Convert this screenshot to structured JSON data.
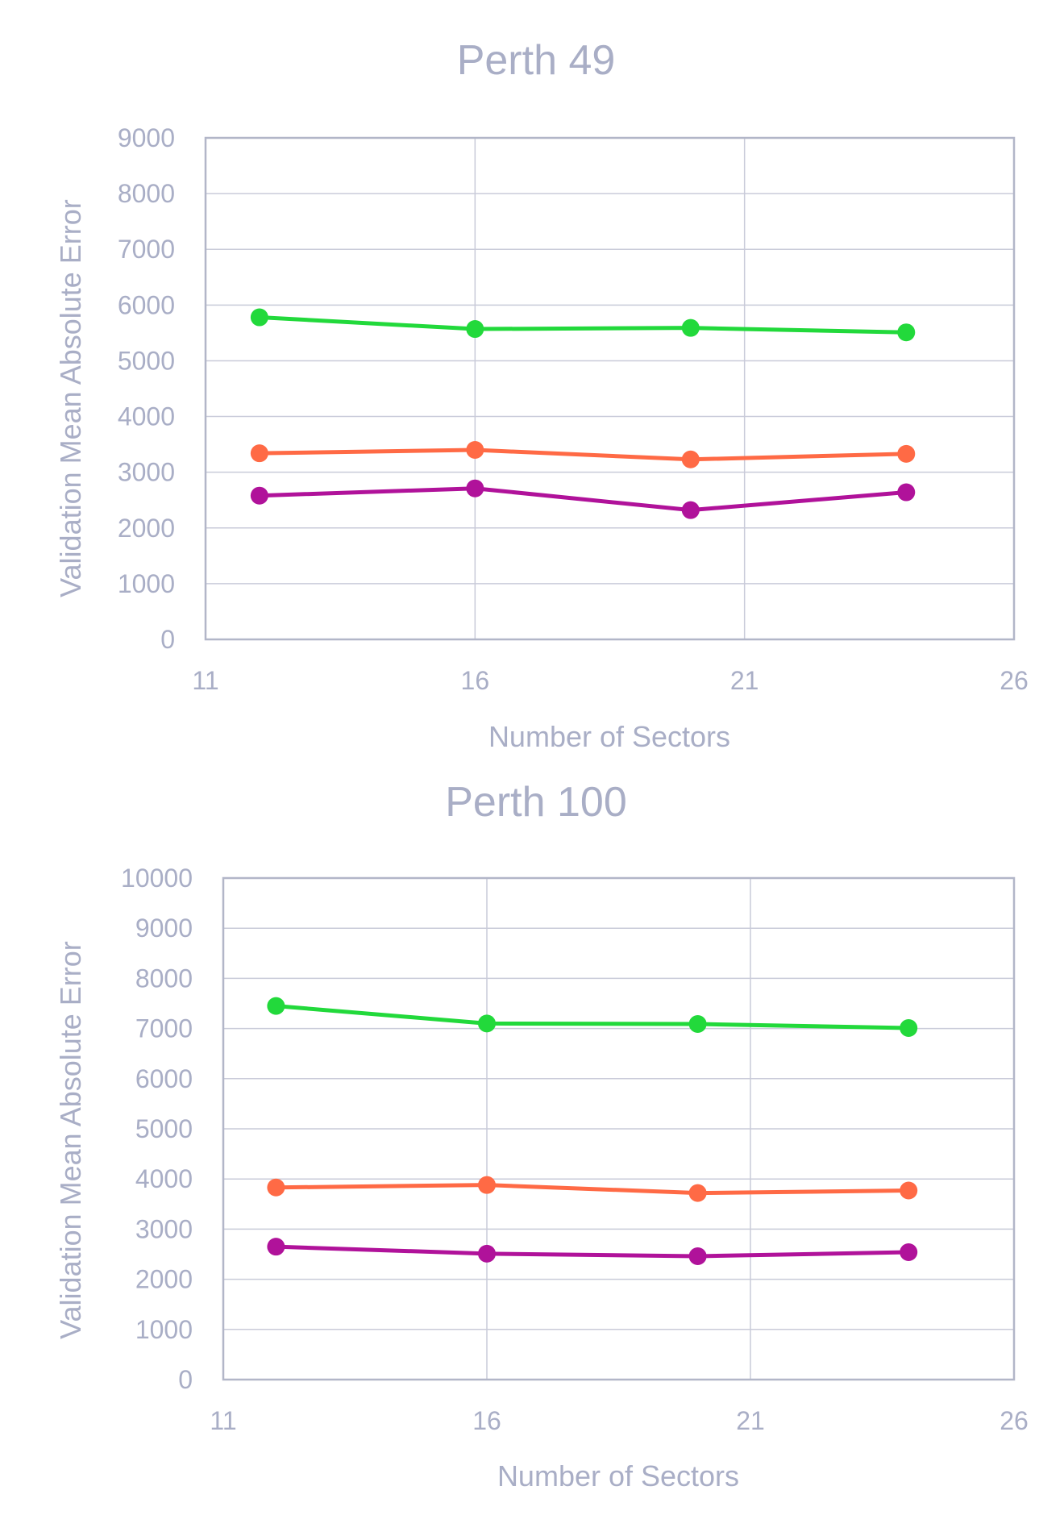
{
  "colors": {
    "text": "#a9aec6",
    "grid": "#c9cbd9",
    "series": [
      "#22d93b",
      "#ff6a45",
      "#b0129a"
    ]
  },
  "chart_data": [
    {
      "type": "line",
      "title": "Perth 49",
      "xlabel": "Number of Sectors",
      "ylabel": "Validation Mean Absolute Error",
      "xlim": [
        11,
        26
      ],
      "ylim": [
        0,
        9000
      ],
      "xticks": [
        "11",
        "16",
        "21",
        "26"
      ],
      "yticks": [
        "0",
        "1000",
        "2000",
        "3000",
        "4000",
        "5000",
        "6000",
        "7000",
        "8000",
        "9000"
      ],
      "grid": true,
      "legend": "none",
      "x": [
        12,
        16,
        20,
        24
      ],
      "series": [
        {
          "color": "#22d93b",
          "values": [
            5780,
            5570,
            5590,
            5510
          ]
        },
        {
          "color": "#ff6a45",
          "values": [
            3340,
            3400,
            3230,
            3330
          ]
        },
        {
          "color": "#b0129a",
          "values": [
            2580,
            2710,
            2320,
            2640
          ]
        }
      ]
    },
    {
      "type": "line",
      "title": "Perth 100",
      "xlabel": "Number of Sectors",
      "ylabel": "Validation Mean Absolute Error",
      "xlim": [
        11,
        26
      ],
      "ylim": [
        0,
        10000
      ],
      "xticks": [
        "11",
        "16",
        "21",
        "26"
      ],
      "yticks": [
        "0",
        "1000",
        "2000",
        "3000",
        "4000",
        "5000",
        "6000",
        "7000",
        "8000",
        "9000",
        "10000"
      ],
      "grid": true,
      "legend": "none",
      "x": [
        12,
        16,
        20,
        24
      ],
      "series": [
        {
          "color": "#22d93b",
          "values": [
            7450,
            7100,
            7090,
            7010
          ]
        },
        {
          "color": "#ff6a45",
          "values": [
            3830,
            3880,
            3720,
            3770
          ]
        },
        {
          "color": "#b0129a",
          "values": [
            2650,
            2510,
            2460,
            2540
          ]
        }
      ]
    }
  ]
}
